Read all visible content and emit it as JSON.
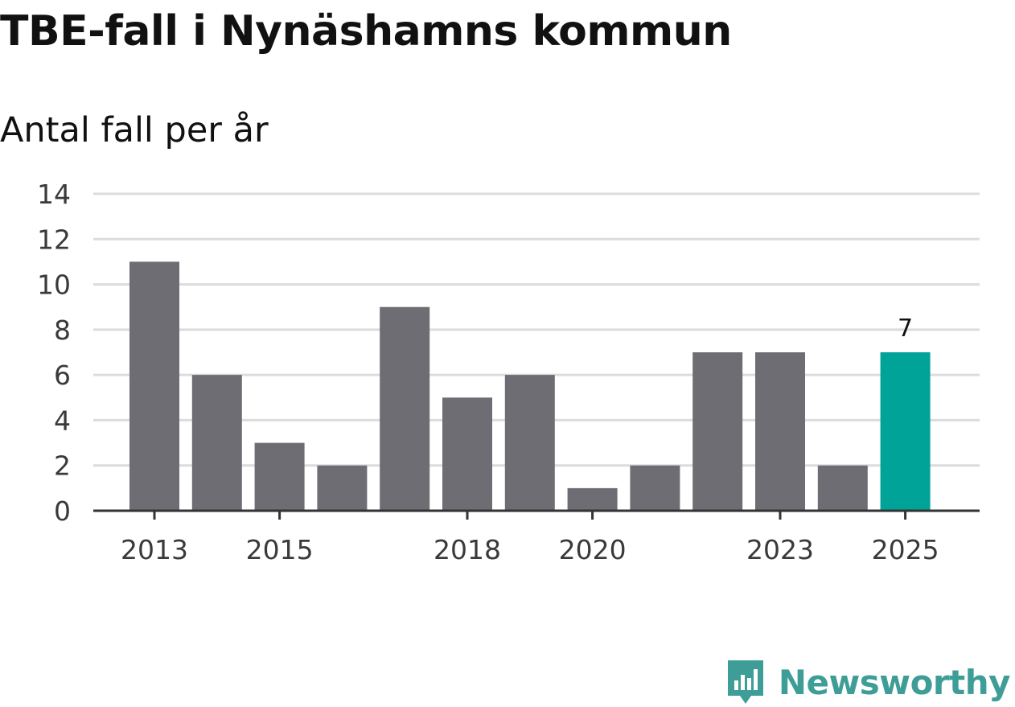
{
  "chart_data": {
    "type": "bar",
    "title": "TBE-fall i Nynäshamns kommun",
    "subtitle": "Antal fall per år",
    "categories": [
      "2013",
      "2014",
      "2015",
      "2016",
      "2017",
      "2018",
      "2019",
      "2020",
      "2021",
      "2022",
      "2023",
      "2024",
      "2025"
    ],
    "values": [
      11,
      6,
      3,
      2,
      9,
      5,
      6,
      1,
      2,
      7,
      7,
      2,
      7
    ],
    "x_tick_labels": [
      "2013",
      "2015",
      "2018",
      "2020",
      "2023",
      "2025"
    ],
    "y_ticks": [
      0,
      2,
      4,
      6,
      8,
      10,
      12,
      14
    ],
    "ylim": [
      0,
      14
    ],
    "xlabel": "",
    "ylabel": "",
    "grid": true,
    "highlight_category": "2025",
    "data_labels": [
      {
        "category": "2025",
        "text": "7"
      }
    ],
    "colors": {
      "bar": "#6e6d74",
      "highlight": "#00a398",
      "grid": "#dcdcdc",
      "axis": "#333333"
    }
  },
  "branding": {
    "name": "Newsworthy",
    "icon": "newsworthy-logo-icon",
    "color": "#3e9d97"
  }
}
